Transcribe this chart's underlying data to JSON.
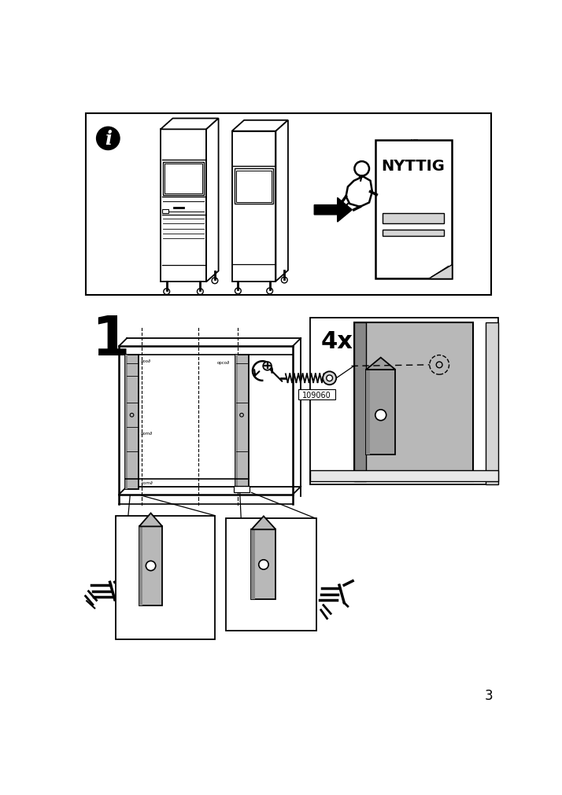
{
  "page_num": "3",
  "step_num": "1",
  "quantity_label": "4x",
  "part_number": "109060",
  "nyttig_label": "NYTTIG",
  "bg_color": "#ffffff",
  "gray_color": "#b8b8b8",
  "dark_gray": "#888888",
  "light_gray": "#d5d5d5"
}
